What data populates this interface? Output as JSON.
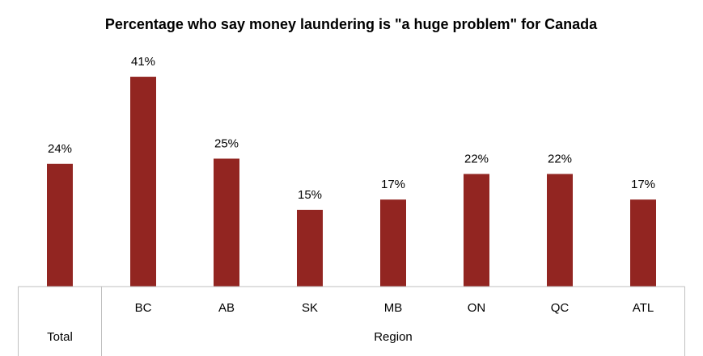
{
  "chart_data": {
    "type": "bar",
    "title": "Percentage who say money laundering is \"a huge problem\" for Canada",
    "categories": [
      null,
      "BC",
      "AB",
      "SK",
      "MB",
      "ON",
      "QC",
      "ATL"
    ],
    "values": [
      24,
      41,
      25,
      15,
      17,
      22,
      22,
      17
    ],
    "value_labels": [
      "24%",
      "41%",
      "25%",
      "15%",
      "17%",
      "22%",
      "22%",
      "17%"
    ],
    "groups": [
      {
        "label": "Total",
        "size": 1
      },
      {
        "label": "Region",
        "size": 7
      }
    ],
    "color": "#922521"
  }
}
